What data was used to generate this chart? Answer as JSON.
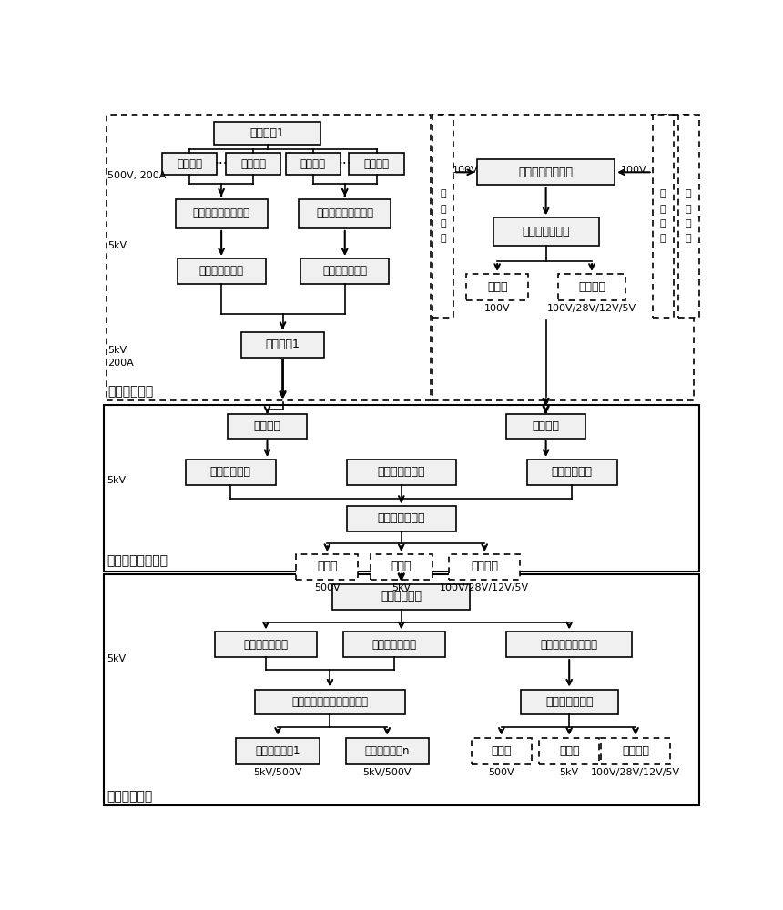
{
  "bg_color": "#ffffff",
  "sec1_label": "太阳电池阵区",
  "sec2_label": "主结构电力传输区",
  "sec3_label": "发射天线阵区",
  "label_500v200a": "500V, 200A",
  "label_5kv_1": "5kV",
  "label_5kv200a": "5kV\n200A",
  "label_5kv_2": "5kV",
  "label_5kv_3": "5kV",
  "box_dianchi_fenzhen1": "电池分阵1",
  "box_dianchizhen1": "电池子阵",
  "box_dianchizhen2": "电池子阵",
  "box_dianchizhen3": "电池子阵",
  "box_dianchizhen4": "电池子阵",
  "box_ziyazhuanhuan1": "子阵电压变换与调节",
  "box_ziyazhuanhuan2": "子阵电压变换与调节",
  "box_zhumuixian1": "电池分阵主母线",
  "box_zhumuixian2": "电池分阵主母线",
  "box_daodiangjie": "导电关节1",
  "box_fenwu_muxian": "电池分阵服务母线",
  "box_dianya_tiaojie": "电压变换与调节",
  "box_xudianchi_1": "蓄电池",
  "box_fuwu_1": "服务系统",
  "label_100v_left": "100V",
  "label_100v_right": "100V",
  "label_100v_bot": "100V",
  "label_svc1": "100V/28V/12V/5V",
  "mid_label": "电\n池\n分\n阵",
  "r1_label": "电\n池\n分\n阵",
  "r2_label": "电\n池\n分\n阵",
  "box_muxian_jiedian_L": "母线调节",
  "box_muxian_jiedian_R": "母线调节",
  "box_chuanshu_L": "电力传输母线",
  "box_zhujiegou_svc": "主结构服务母线",
  "box_chuanshu_R": "电力传输母线",
  "box_dianya2": "电压变换与调节",
  "box_xudianchi_2": "蓄电池",
  "box_dituijin_2": "电推进",
  "box_fuwu_2": "服务系统",
  "label_500v_2": "500V",
  "label_5kv_d2": "5kV",
  "label_svc2": "100V/28V/12V/5V",
  "box_pdu": "功率分配单元",
  "box_fashe_L": "发射天线阵母线",
  "box_fashe_M": "发射天线阵母线",
  "box_fashe_svc": "发射天线阵服务母线",
  "box_microwave": "微波源高压低压变换与调节",
  "box_dinya_low": "低压变换与调节",
  "box_fashe_mod1": "发射天线模块1",
  "box_fashe_modn": "发射天线模块n",
  "box_xudianchi_3": "蓄电池",
  "box_dituijin_3": "电推进",
  "box_fuwu_3": "服务系统",
  "label_5k500_1": "5kV/500V",
  "label_5k500_2": "5kV/500V",
  "label_500v_3": "500V",
  "label_5kv_d3": "5kV",
  "label_svc3": "100V/28V/12V/5V",
  "dots": "···"
}
